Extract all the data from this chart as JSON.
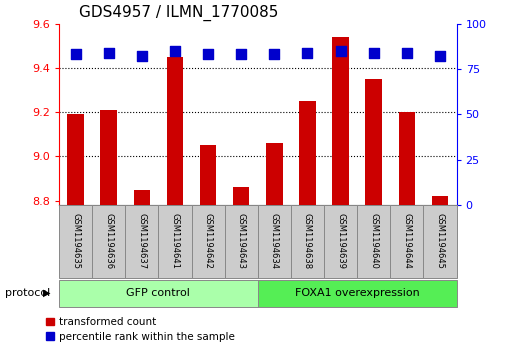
{
  "title": "GDS4957 / ILMN_1770085",
  "samples": [
    "GSM1194635",
    "GSM1194636",
    "GSM1194637",
    "GSM1194641",
    "GSM1194642",
    "GSM1194643",
    "GSM1194634",
    "GSM1194638",
    "GSM1194639",
    "GSM1194640",
    "GSM1194644",
    "GSM1194645"
  ],
  "transformed_count": [
    9.19,
    9.21,
    8.85,
    9.45,
    9.05,
    8.86,
    9.06,
    9.25,
    9.54,
    9.35,
    9.2,
    8.82
  ],
  "percentile_rank": [
    83,
    84,
    82,
    85,
    83,
    83,
    83,
    84,
    85,
    84,
    84,
    82
  ],
  "group1_label": "GFP control",
  "group2_label": "FOXA1 overexpression",
  "group1_count": 6,
  "group2_count": 6,
  "ylim_left": [
    8.78,
    9.6
  ],
  "ylim_right": [
    0,
    100
  ],
  "yticks_left": [
    8.8,
    9.0,
    9.2,
    9.4,
    9.6
  ],
  "yticks_right": [
    0,
    25,
    50,
    75,
    100
  ],
  "bar_color": "#cc0000",
  "dot_color": "#0000cc",
  "group1_color": "#aaffaa",
  "group2_color": "#55ee55",
  "legend_label_bar": "transformed count",
  "legend_label_dot": "percentile rank within the sample",
  "bar_width": 0.5,
  "dot_size": 50,
  "bg_color": "#cccccc",
  "protocol_label": "protocol"
}
